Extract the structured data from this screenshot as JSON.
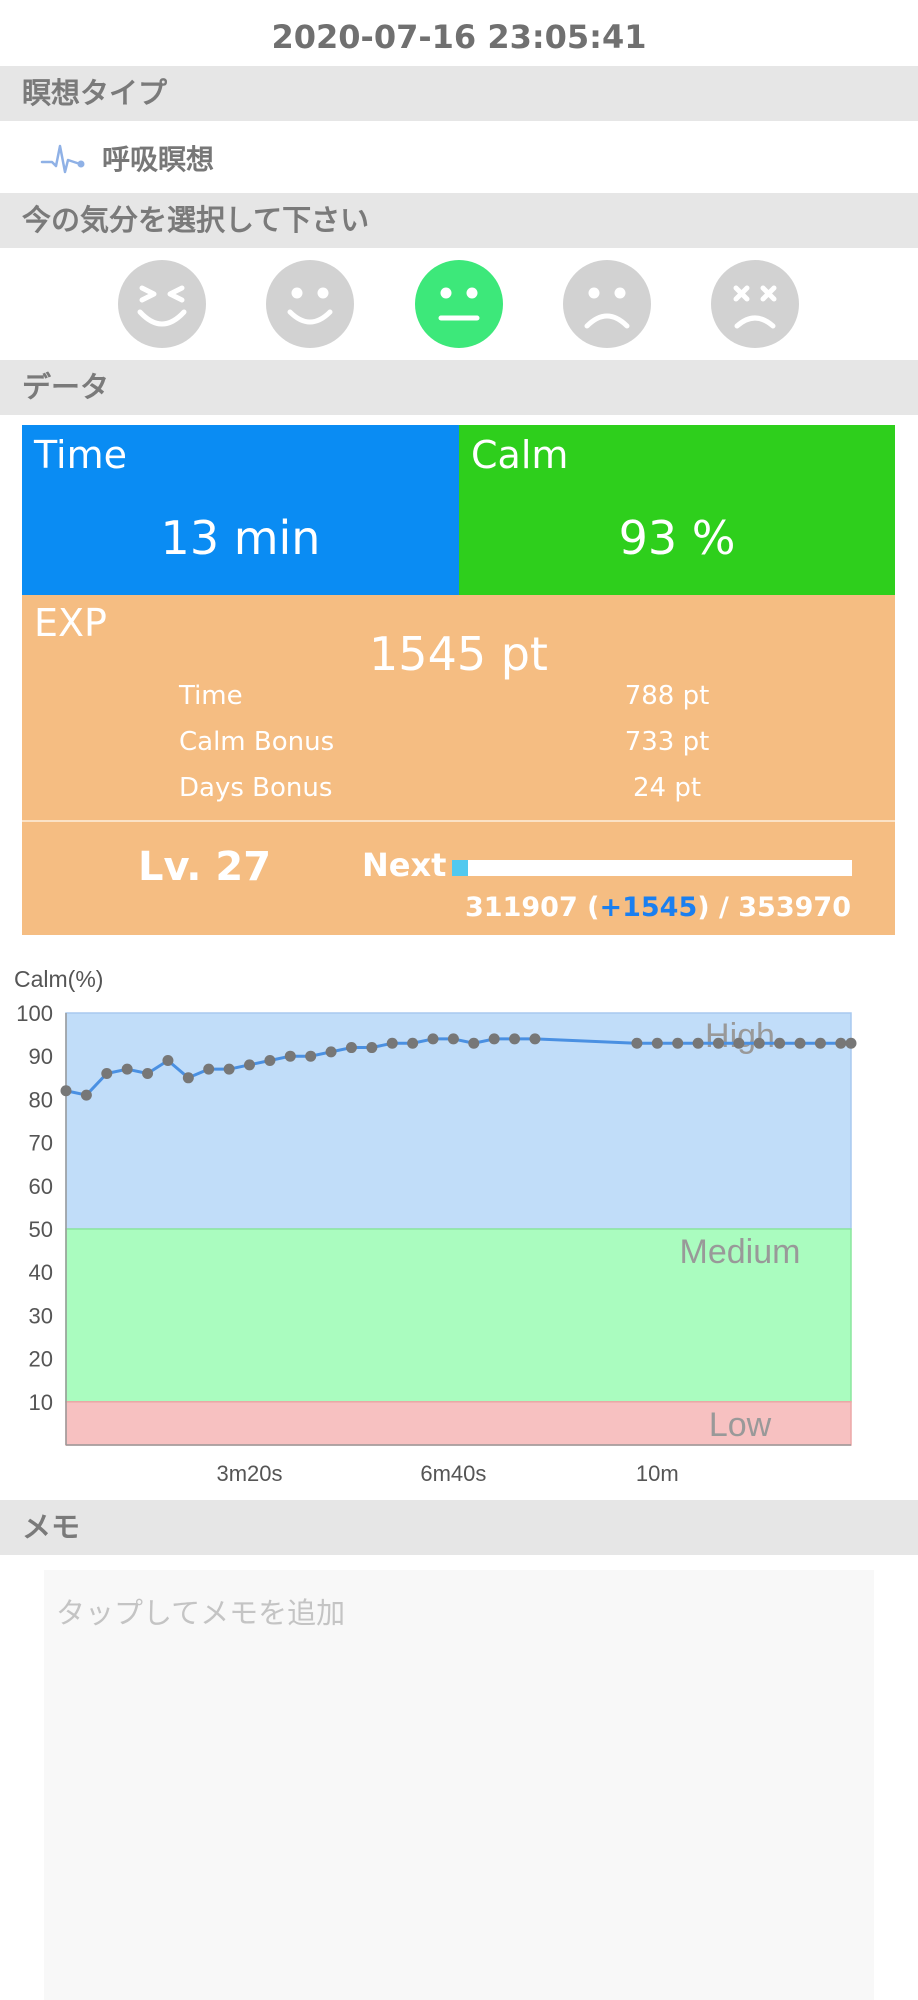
{
  "datetime": "2020-07-16 23:05:41",
  "sections": {
    "meditation_type": "瞑想タイプ",
    "mood": "今の気分を選択して下さい",
    "data": "データ",
    "memo": "メモ"
  },
  "meditation": {
    "label": "呼吸瞑想",
    "icon": "breath-wave-icon"
  },
  "moods": [
    {
      "icon": "laughing-face-icon",
      "selected": false
    },
    {
      "icon": "smiling-face-icon",
      "selected": false
    },
    {
      "icon": "neutral-face-icon",
      "selected": true
    },
    {
      "icon": "sad-face-icon",
      "selected": false
    },
    {
      "icon": "dizzy-face-icon",
      "selected": false
    }
  ],
  "stats": {
    "time_title": "Time",
    "time_value": "13 min",
    "calm_title": "Calm",
    "calm_value": "93 %"
  },
  "exp": {
    "title": "EXP",
    "total": "1545 pt",
    "rows": [
      {
        "label": "Time",
        "value": "788 pt"
      },
      {
        "label": "Calm Bonus",
        "value": "733 pt"
      },
      {
        "label": "Days Bonus",
        "value": "24 pt"
      }
    ]
  },
  "level": {
    "label": "Lv. 27",
    "next_label": "Next",
    "progress_fraction": 0.04,
    "current": "311907 (",
    "gain": "+1545",
    "target": ") / 353970"
  },
  "colors": {
    "time_card": "#0a8cf3",
    "calm_card": "#2ecf1c",
    "exp_card": "#f5bd82",
    "mood_selected": "#3de87a",
    "zone_high": "#c1ddf9",
    "zone_medium": "#aafcbf",
    "zone_low": "#f7c1c1",
    "line": "#4a90e2"
  },
  "chart_data": {
    "type": "line",
    "ylabel": "Calm(%)",
    "ylim": [
      0,
      100
    ],
    "yticks": [
      "100",
      "90",
      "80",
      "70",
      "60",
      "50",
      "40",
      "30",
      "20",
      "10"
    ],
    "xticks": [
      {
        "label": "3m20s",
        "seconds": 200
      },
      {
        "label": "6m40s",
        "seconds": 400
      },
      {
        "label": "10m",
        "seconds": 600
      }
    ],
    "xlim_seconds": [
      20,
      790
    ],
    "zones": [
      {
        "name": "High",
        "from": 50,
        "to": 100
      },
      {
        "name": "Medium",
        "from": 10,
        "to": 50
      },
      {
        "name": "Low",
        "from": 0,
        "to": 10
      }
    ],
    "series": [
      {
        "x": [
          20,
          40,
          60,
          80,
          100,
          120,
          140,
          160,
          180,
          200,
          220,
          240,
          260,
          280,
          300,
          320,
          340,
          360,
          380,
          400,
          420,
          440,
          460,
          480,
          580,
          600,
          620,
          640,
          660,
          680,
          700,
          720,
          740,
          760,
          780,
          790
        ],
        "y": [
          82,
          81,
          86,
          87,
          86,
          89,
          85,
          87,
          87,
          88,
          89,
          90,
          90,
          91,
          92,
          92,
          93,
          93,
          94,
          94,
          93,
          94,
          94,
          94,
          93,
          93,
          93,
          93,
          93,
          93,
          93,
          93,
          93,
          93,
          93,
          93
        ]
      }
    ]
  },
  "memo": {
    "placeholder": "タップしてメモを追加"
  }
}
